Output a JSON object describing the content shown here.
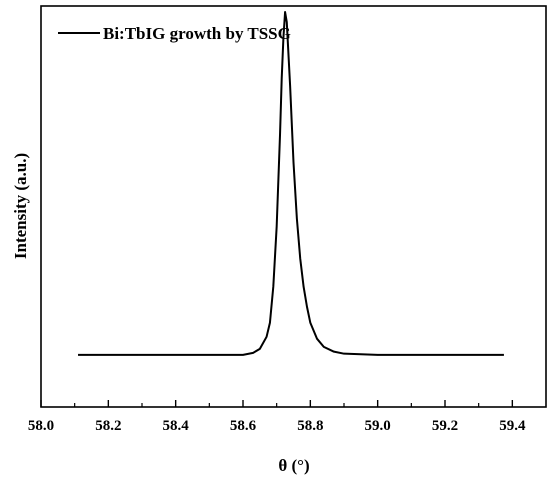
{
  "chart_data": {
    "type": "line",
    "title": "",
    "xlabel": "θ (°)",
    "ylabel": "Intensity (a.u.)",
    "xlim": [
      58.0,
      59.5
    ],
    "ylim": [
      0,
      1.0
    ],
    "x_ticks": [
      "58.0",
      "58.2",
      "58.4",
      "58.6",
      "58.8",
      "59.0",
      "59.2",
      "59.4"
    ],
    "y_ticks_shown": false,
    "grid": false,
    "legend_position": "top-left",
    "series": [
      {
        "name": "Bi:TbIG growth by TSSG",
        "color": "#000000",
        "x": [
          58.11,
          58.3,
          58.5,
          58.6,
          58.63,
          58.65,
          58.67,
          58.68,
          58.69,
          58.7,
          58.71,
          58.715,
          58.72,
          58.725,
          58.73,
          58.74,
          58.75,
          58.76,
          58.77,
          58.78,
          58.79,
          58.8,
          58.82,
          58.84,
          58.87,
          58.9,
          59.0,
          59.2,
          59.375
        ],
        "y": [
          0.13,
          0.13,
          0.13,
          0.13,
          0.135,
          0.145,
          0.175,
          0.21,
          0.3,
          0.45,
          0.68,
          0.82,
          0.92,
          0.985,
          0.96,
          0.8,
          0.61,
          0.47,
          0.37,
          0.3,
          0.25,
          0.21,
          0.17,
          0.15,
          0.138,
          0.133,
          0.13,
          0.13,
          0.13
        ]
      }
    ]
  }
}
